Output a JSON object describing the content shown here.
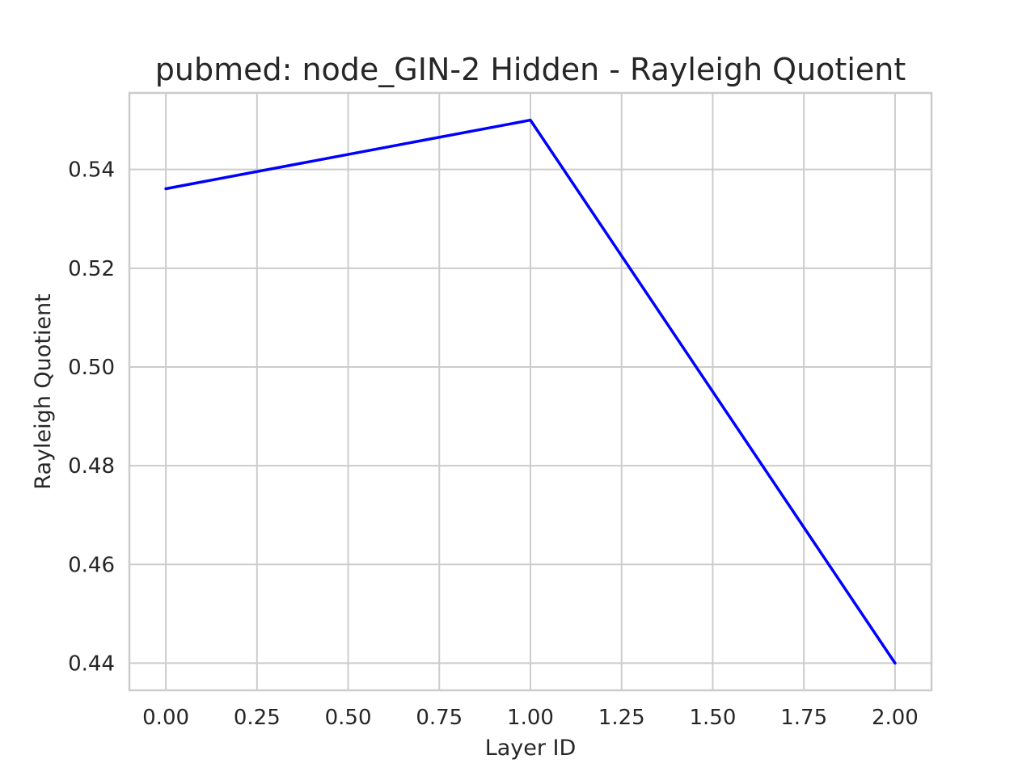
{
  "chart_data": {
    "type": "line",
    "title": "pubmed: node_GIN-2 Hidden - Rayleigh Quotient",
    "xlabel": "Layer ID",
    "ylabel": "Rayleigh Quotient",
    "xlim": [
      -0.1,
      2.1
    ],
    "ylim": [
      0.4345,
      0.5555
    ],
    "x_ticks": [
      0.0,
      0.25,
      0.5,
      0.75,
      1.0,
      1.25,
      1.5,
      1.75,
      2.0
    ],
    "x_tick_labels": [
      "0.00",
      "0.25",
      "0.50",
      "0.75",
      "1.00",
      "1.25",
      "1.50",
      "1.75",
      "2.00"
    ],
    "y_ticks": [
      0.44,
      0.46,
      0.48,
      0.5,
      0.52,
      0.54
    ],
    "y_tick_labels": [
      "0.44",
      "0.46",
      "0.48",
      "0.50",
      "0.52",
      "0.54"
    ],
    "grid": true,
    "series": [
      {
        "color": "#0000ff",
        "x": [
          0,
          1,
          2
        ],
        "y": [
          0.5361,
          0.55,
          0.44
        ]
      }
    ]
  }
}
